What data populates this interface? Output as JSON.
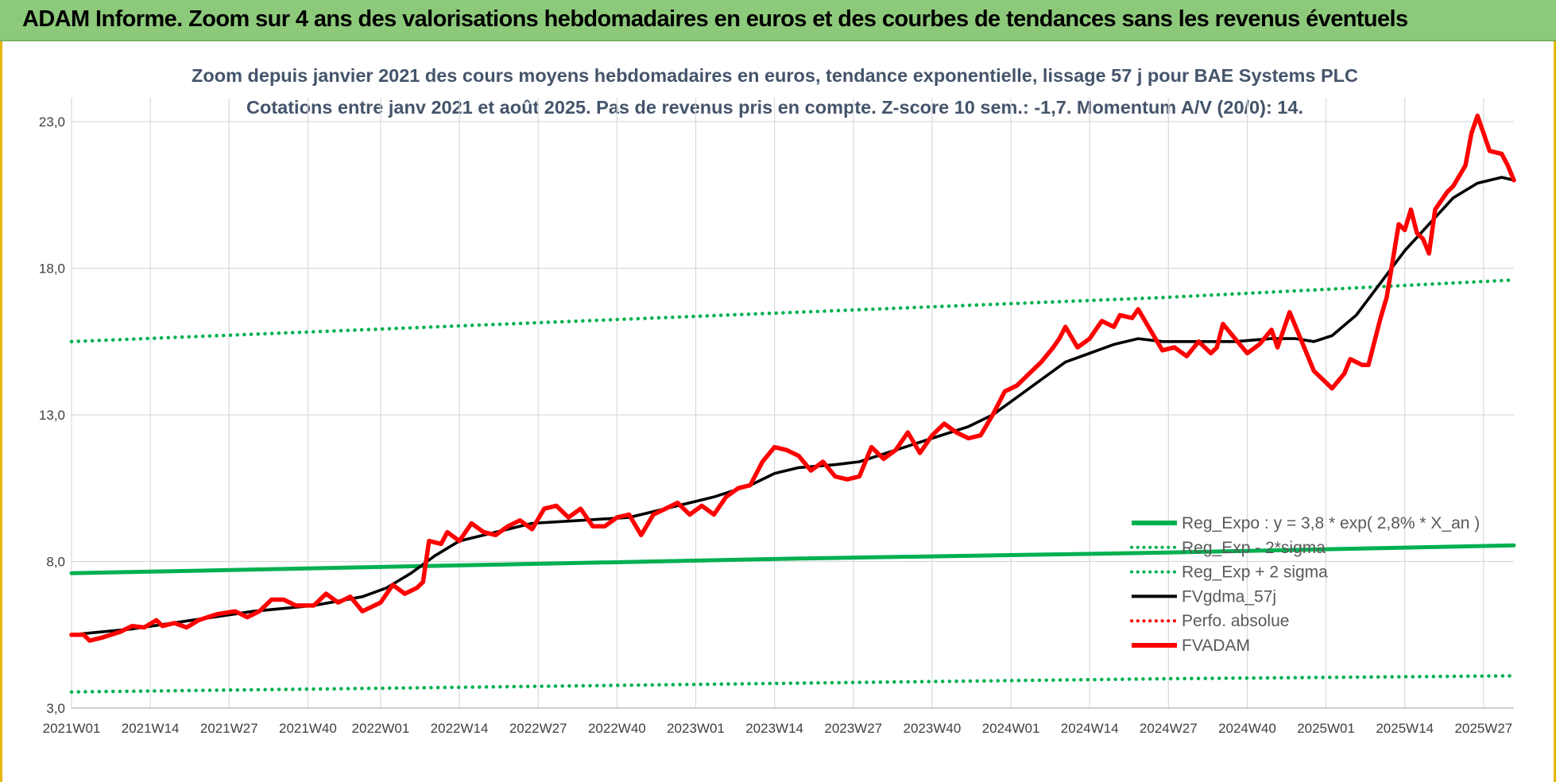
{
  "header": {
    "title": "ADAM Informe. Zoom sur 4 ans des valorisations hebdomadaires en euros et des courbes de tendances sans les revenus éventuels"
  },
  "chart_data": {
    "type": "line",
    "title": "Zoom depuis janvier 2021 des cours moyens hebdomadaires en euros, tendance exponentielle, lissage 57 j pour BAE Systems PLC",
    "subtitle": "Cotations entre janv 2021 et août 2025.  Pas de revenus pris en compte. Z-score 10 sem.: -1,7. Momentum A/V (20/0): 14.",
    "xlabel": "",
    "ylabel": "",
    "ylim": [
      3,
      23
    ],
    "xlim": [
      0,
      238
    ],
    "grid": true,
    "legend_position": "bottom-right",
    "y_ticks": [
      "3,0",
      "8,0",
      "13,0",
      "18,0",
      "23,0"
    ],
    "x_ticks": [
      {
        "label": "2021W01",
        "index": 0
      },
      {
        "label": "2021W14",
        "index": 13
      },
      {
        "label": "2021W27",
        "index": 26
      },
      {
        "label": "2021W40",
        "index": 39
      },
      {
        "label": "2022W01",
        "index": 51
      },
      {
        "label": "2022W14",
        "index": 64
      },
      {
        "label": "2022W27",
        "index": 77
      },
      {
        "label": "2022W40",
        "index": 90
      },
      {
        "label": "2023W01",
        "index": 103
      },
      {
        "label": "2023W14",
        "index": 116
      },
      {
        "label": "2023W27",
        "index": 129
      },
      {
        "label": "2023W40",
        "index": 142
      },
      {
        "label": "2024W01",
        "index": 155
      },
      {
        "label": "2024W14",
        "index": 168
      },
      {
        "label": "2024W27",
        "index": 181
      },
      {
        "label": "2024W40",
        "index": 194
      },
      {
        "label": "2025W01",
        "index": 207
      },
      {
        "label": "2025W14",
        "index": 220
      },
      {
        "label": "2025W27",
        "index": 233
      }
    ],
    "series": [
      {
        "name": "Reg_Expo : y = 3,8 * exp( 2,8% *  X_an )",
        "style": "solid",
        "color": "#00b050",
        "points": [
          [
            0,
            7.6
          ],
          [
            60,
            7.85
          ],
          [
            120,
            8.1
          ],
          [
            180,
            8.3
          ],
          [
            238,
            8.55
          ]
        ]
      },
      {
        "name": "Reg_Exp - 2*sigma",
        "style": "dotted",
        "color": "#00b050",
        "points": [
          [
            0,
            3.55
          ],
          [
            60,
            3.7
          ],
          [
            120,
            3.85
          ],
          [
            180,
            4.0
          ],
          [
            238,
            4.1
          ]
        ]
      },
      {
        "name": "Reg_Exp + 2 sigma",
        "style": "dotted",
        "color": "#00b050",
        "points": [
          [
            0,
            15.5
          ],
          [
            60,
            16.0
          ],
          [
            120,
            16.5
          ],
          [
            180,
            17.0
          ],
          [
            238,
            17.6
          ]
        ]
      },
      {
        "name": "FVgdma_57j",
        "style": "solid",
        "color": "#000000",
        "points": [
          [
            0,
            5.5
          ],
          [
            10,
            5.7
          ],
          [
            20,
            6.0
          ],
          [
            30,
            6.3
          ],
          [
            40,
            6.5
          ],
          [
            48,
            6.8
          ],
          [
            52,
            7.1
          ],
          [
            56,
            7.6
          ],
          [
            60,
            8.2
          ],
          [
            64,
            8.7
          ],
          [
            70,
            9.0
          ],
          [
            76,
            9.3
          ],
          [
            84,
            9.4
          ],
          [
            92,
            9.5
          ],
          [
            100,
            9.9
          ],
          [
            106,
            10.2
          ],
          [
            112,
            10.6
          ],
          [
            116,
            11.0
          ],
          [
            120,
            11.2
          ],
          [
            126,
            11.3
          ],
          [
            130,
            11.4
          ],
          [
            136,
            11.8
          ],
          [
            142,
            12.2
          ],
          [
            148,
            12.6
          ],
          [
            152,
            13.0
          ],
          [
            156,
            13.6
          ],
          [
            160,
            14.2
          ],
          [
            164,
            14.8
          ],
          [
            168,
            15.1
          ],
          [
            172,
            15.4
          ],
          [
            176,
            15.6
          ],
          [
            180,
            15.5
          ],
          [
            186,
            15.5
          ],
          [
            192,
            15.5
          ],
          [
            198,
            15.6
          ],
          [
            202,
            15.6
          ],
          [
            205,
            15.5
          ],
          [
            208,
            15.7
          ],
          [
            212,
            16.4
          ],
          [
            216,
            17.5
          ],
          [
            220,
            18.6
          ],
          [
            224,
            19.5
          ],
          [
            228,
            20.4
          ],
          [
            232,
            20.9
          ],
          [
            236,
            21.1
          ],
          [
            238,
            21.0
          ]
        ]
      },
      {
        "name": "Perfo. absolue",
        "style": "dotted",
        "color": "#ff0000",
        "points": []
      },
      {
        "name": "FVADAM",
        "style": "solid",
        "color": "#ff0000",
        "points": [
          [
            0,
            5.5
          ],
          [
            2,
            5.5
          ],
          [
            3,
            5.3
          ],
          [
            5,
            5.4
          ],
          [
            8,
            5.6
          ],
          [
            10,
            5.8
          ],
          [
            12,
            5.75
          ],
          [
            14,
            6.0
          ],
          [
            15,
            5.8
          ],
          [
            17,
            5.9
          ],
          [
            19,
            5.75
          ],
          [
            21,
            6.0
          ],
          [
            24,
            6.2
          ],
          [
            27,
            6.3
          ],
          [
            29,
            6.1
          ],
          [
            31,
            6.3
          ],
          [
            33,
            6.7
          ],
          [
            35,
            6.7
          ],
          [
            37,
            6.5
          ],
          [
            40,
            6.5
          ],
          [
            42,
            6.9
          ],
          [
            44,
            6.6
          ],
          [
            46,
            6.8
          ],
          [
            48,
            6.3
          ],
          [
            51,
            6.6
          ],
          [
            53,
            7.2
          ],
          [
            55,
            6.9
          ],
          [
            57,
            7.1
          ],
          [
            58,
            7.3
          ],
          [
            59,
            8.7
          ],
          [
            61,
            8.6
          ],
          [
            62,
            9.0
          ],
          [
            64,
            8.7
          ],
          [
            66,
            9.3
          ],
          [
            68,
            9.0
          ],
          [
            70,
            8.9
          ],
          [
            72,
            9.2
          ],
          [
            74,
            9.4
          ],
          [
            76,
            9.1
          ],
          [
            78,
            9.8
          ],
          [
            80,
            9.9
          ],
          [
            82,
            9.5
          ],
          [
            84,
            9.8
          ],
          [
            86,
            9.2
          ],
          [
            88,
            9.2
          ],
          [
            90,
            9.5
          ],
          [
            92,
            9.6
          ],
          [
            94,
            8.9
          ],
          [
            96,
            9.6
          ],
          [
            98,
            9.8
          ],
          [
            100,
            10.0
          ],
          [
            102,
            9.6
          ],
          [
            104,
            9.9
          ],
          [
            106,
            9.6
          ],
          [
            108,
            10.2
          ],
          [
            110,
            10.5
          ],
          [
            112,
            10.6
          ],
          [
            114,
            11.4
          ],
          [
            116,
            11.9
          ],
          [
            118,
            11.8
          ],
          [
            120,
            11.6
          ],
          [
            122,
            11.1
          ],
          [
            124,
            11.4
          ],
          [
            126,
            10.9
          ],
          [
            128,
            10.8
          ],
          [
            130,
            10.9
          ],
          [
            132,
            11.9
          ],
          [
            134,
            11.5
          ],
          [
            136,
            11.8
          ],
          [
            138,
            12.4
          ],
          [
            140,
            11.7
          ],
          [
            142,
            12.3
          ],
          [
            144,
            12.7
          ],
          [
            146,
            12.4
          ],
          [
            148,
            12.2
          ],
          [
            150,
            12.3
          ],
          [
            152,
            13.0
          ],
          [
            154,
            13.8
          ],
          [
            156,
            14.0
          ],
          [
            158,
            14.4
          ],
          [
            160,
            14.8
          ],
          [
            162,
            15.3
          ],
          [
            163,
            15.6
          ],
          [
            164,
            16.0
          ],
          [
            166,
            15.3
          ],
          [
            168,
            15.6
          ],
          [
            170,
            16.2
          ],
          [
            172,
            16.0
          ],
          [
            173,
            16.4
          ],
          [
            175,
            16.3
          ],
          [
            176,
            16.6
          ],
          [
            178,
            15.9
          ],
          [
            180,
            15.2
          ],
          [
            182,
            15.3
          ],
          [
            184,
            15.0
          ],
          [
            186,
            15.5
          ],
          [
            188,
            15.1
          ],
          [
            189,
            15.3
          ],
          [
            190,
            16.1
          ],
          [
            192,
            15.6
          ],
          [
            194,
            15.1
          ],
          [
            196,
            15.4
          ],
          [
            198,
            15.9
          ],
          [
            199,
            15.3
          ],
          [
            201,
            16.5
          ],
          [
            203,
            15.5
          ],
          [
            205,
            14.5
          ],
          [
            207,
            14.1
          ],
          [
            208,
            13.9
          ],
          [
            210,
            14.4
          ],
          [
            211,
            14.9
          ],
          [
            213,
            14.7
          ],
          [
            214,
            14.7
          ],
          [
            216,
            16.3
          ],
          [
            217,
            17.0
          ],
          [
            219,
            19.5
          ],
          [
            220,
            19.3
          ],
          [
            221,
            20.0
          ],
          [
            222,
            19.2
          ],
          [
            223,
            19.0
          ],
          [
            224,
            18.5
          ],
          [
            225,
            20.0
          ],
          [
            227,
            20.6
          ],
          [
            228,
            20.8
          ],
          [
            230,
            21.5
          ],
          [
            231,
            22.6
          ],
          [
            232,
            23.2
          ],
          [
            233,
            22.6
          ],
          [
            234,
            22.0
          ],
          [
            236,
            21.9
          ],
          [
            237,
            21.5
          ],
          [
            238,
            21.0
          ]
        ]
      }
    ]
  }
}
